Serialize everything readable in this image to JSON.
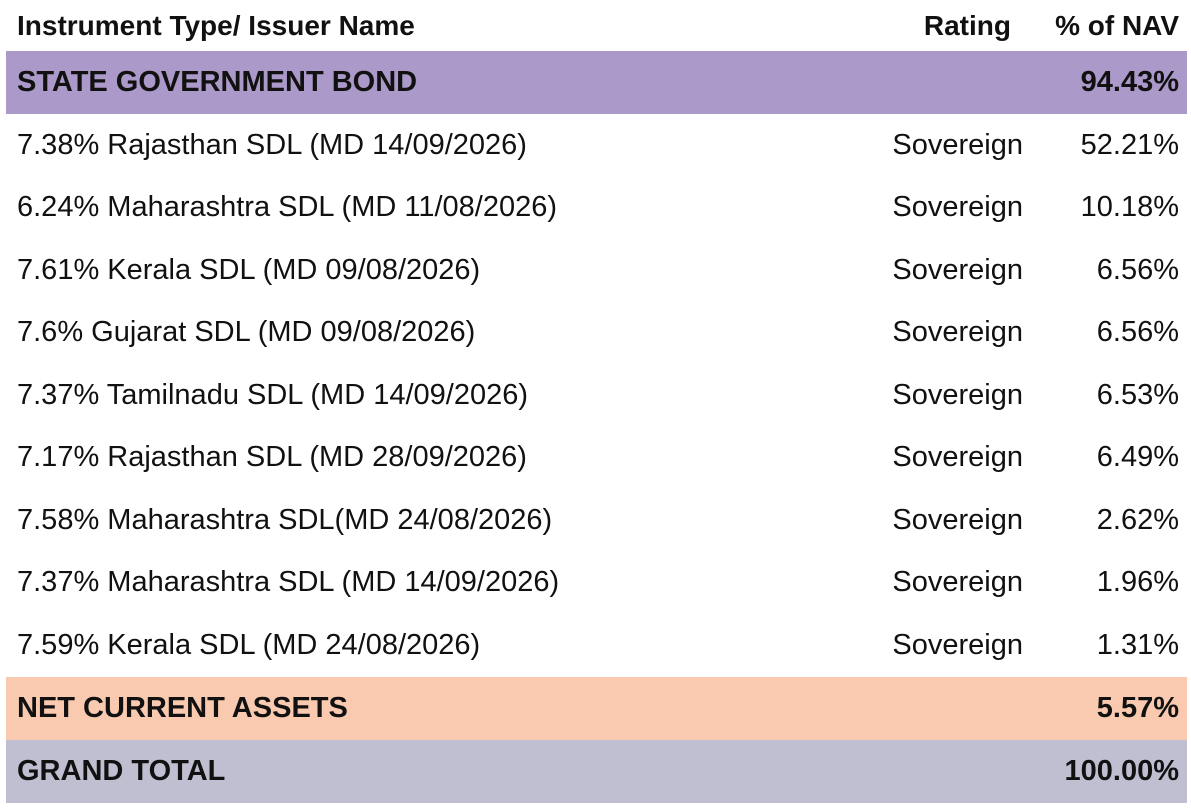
{
  "header": {
    "name_label": "Instrument Type/ Issuer Name",
    "rating_label": "Rating",
    "nav_label": "% of NAV"
  },
  "sections": {
    "state_government_bond": {
      "label": "STATE GOVERNMENT BOND",
      "nav": "94.43%",
      "color": "#ab99c9"
    },
    "net_current_assets": {
      "label": "NET CURRENT ASSETS",
      "nav": "5.57%",
      "color": "#f9c9b0"
    },
    "grand_total": {
      "label": "GRAND TOTAL",
      "nav": "100.00%",
      "color": "#c0bfd1"
    }
  },
  "holdings": [
    {
      "name": "7.38% Rajasthan SDL (MD 14/09/2026)",
      "rating": "Sovereign",
      "nav": "52.21%"
    },
    {
      "name": "6.24% Maharashtra SDL (MD 11/08/2026)",
      "rating": "Sovereign",
      "nav": "10.18%"
    },
    {
      "name": "7.61% Kerala SDL (MD 09/08/2026)",
      "rating": "Sovereign",
      "nav": "6.56%"
    },
    {
      "name": "7.6% Gujarat SDL (MD 09/08/2026)",
      "rating": "Sovereign",
      "nav": "6.56%"
    },
    {
      "name": "7.37% Tamilnadu SDL (MD 14/09/2026)",
      "rating": "Sovereign",
      "nav": "6.53%"
    },
    {
      "name": "7.17% Rajasthan SDL (MD 28/09/2026)",
      "rating": "Sovereign",
      "nav": "6.49%"
    },
    {
      "name": "7.58% Maharashtra SDL(MD 24/08/2026)",
      "rating": "Sovereign",
      "nav": "2.62%"
    },
    {
      "name": "7.37% Maharashtra SDL (MD 14/09/2026)",
      "rating": "Sovereign",
      "nav": "1.96%"
    },
    {
      "name": "7.59% Kerala SDL (MD 24/08/2026)",
      "rating": "Sovereign",
      "nav": "1.31%"
    }
  ]
}
